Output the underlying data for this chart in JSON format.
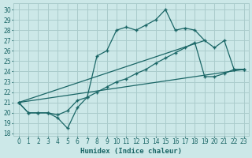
{
  "xlabel": "Humidex (Indice chaleur)",
  "bg_color": "#cce8e8",
  "grid_color": "#aacccc",
  "line_color": "#1a6666",
  "xlim": [
    -0.5,
    23.5
  ],
  "ylim": [
    17.8,
    30.6
  ],
  "yticks": [
    18,
    19,
    20,
    21,
    22,
    23,
    24,
    25,
    26,
    27,
    28,
    29,
    30
  ],
  "xticks": [
    0,
    1,
    2,
    3,
    4,
    5,
    6,
    7,
    8,
    9,
    10,
    11,
    12,
    13,
    14,
    15,
    16,
    17,
    18,
    19,
    20,
    21,
    22,
    23
  ],
  "line1_x": [
    0,
    1,
    2,
    3,
    4,
    5,
    6,
    7,
    8,
    9,
    10,
    11,
    12,
    13,
    14,
    15,
    16,
    17,
    18,
    19,
    20,
    21,
    22,
    23
  ],
  "line1_y": [
    21,
    20,
    20,
    20,
    19.5,
    18.5,
    20.5,
    21.5,
    25.5,
    26,
    28,
    28.3,
    28,
    28.5,
    29,
    30,
    28,
    28.2,
    28,
    27,
    26.3,
    27,
    24.2,
    24.2
  ],
  "line2_x": [
    0,
    1,
    2,
    3,
    4,
    5,
    6,
    7,
    8,
    9,
    10,
    11,
    12,
    13,
    14,
    15,
    16,
    17,
    18,
    19,
    20,
    21,
    22,
    23
  ],
  "line2_y": [
    21,
    20,
    20,
    20,
    19.8,
    20.2,
    21.2,
    21.5,
    22,
    22.5,
    23,
    23.3,
    23.8,
    24.2,
    24.8,
    25.3,
    25.8,
    26.3,
    26.8,
    23.5,
    23.5,
    23.8,
    24.2,
    24.2
  ],
  "line3_x": [
    0,
    19
  ],
  "line3_y": [
    21,
    27
  ],
  "line4_x": [
    0,
    23
  ],
  "line4_y": [
    21,
    24.2
  ]
}
